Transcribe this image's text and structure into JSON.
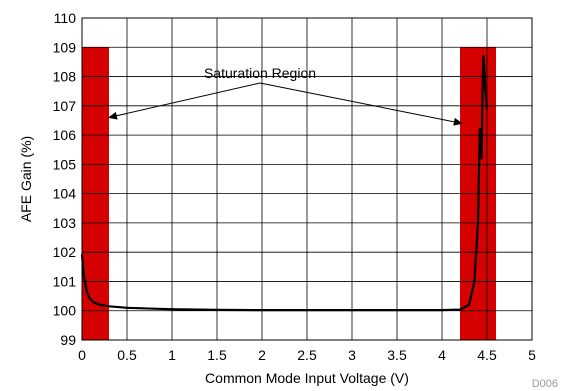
{
  "chart_data": {
    "type": "line",
    "xlabel": "Common Mode Input Voltage (V)",
    "ylabel": "AFE Gain (%)",
    "xlim": [
      0,
      5
    ],
    "ylim": [
      99,
      110
    ],
    "x_ticks": [
      0,
      0.5,
      1,
      1.5,
      2,
      2.5,
      3,
      3.5,
      4,
      4.5,
      5
    ],
    "x_tick_labels": [
      "0",
      "0.5",
      "1",
      "1.5",
      "2",
      "2.5",
      "3",
      "3.5",
      "4",
      "4.5",
      "5"
    ],
    "y_ticks": [
      99,
      100,
      101,
      102,
      103,
      104,
      105,
      106,
      107,
      108,
      109,
      110
    ],
    "y_tick_labels": [
      "99",
      "100",
      "101",
      "102",
      "103",
      "104",
      "105",
      "106",
      "107",
      "108",
      "109",
      "110"
    ],
    "grid": true,
    "figure_id": "D006",
    "annotation": "Saturation Region",
    "saturation_regions": [
      {
        "x_start": 0.0,
        "x_end": 0.3,
        "y_start": 99,
        "y_end": 109,
        "color": "#d50000"
      },
      {
        "x_start": 4.2,
        "x_end": 4.6,
        "y_start": 99,
        "y_end": 109,
        "color": "#d50000"
      }
    ],
    "arrow_targets": [
      {
        "x": 0.3,
        "y": 106.6
      },
      {
        "x": 4.22,
        "y": 106.4
      }
    ],
    "series": [
      {
        "color": "#000000",
        "x": [
          0.0,
          0.02,
          0.05,
          0.08,
          0.12,
          0.2,
          0.3,
          0.5,
          0.8,
          1.0,
          1.5,
          2.0,
          2.5,
          3.0,
          3.5,
          4.0,
          4.2,
          4.3,
          4.36,
          4.4,
          4.42,
          4.44,
          4.45,
          4.46,
          4.47,
          4.48,
          4.5
        ],
        "y": [
          101.9,
          101.2,
          100.7,
          100.45,
          100.3,
          100.2,
          100.15,
          100.1,
          100.07,
          100.05,
          100.03,
          100.02,
          100.02,
          100.02,
          100.02,
          100.02,
          100.04,
          100.2,
          101.0,
          103.0,
          106.2,
          105.2,
          107.5,
          108.7,
          108.3,
          107.6,
          106.9
        ]
      }
    ]
  }
}
